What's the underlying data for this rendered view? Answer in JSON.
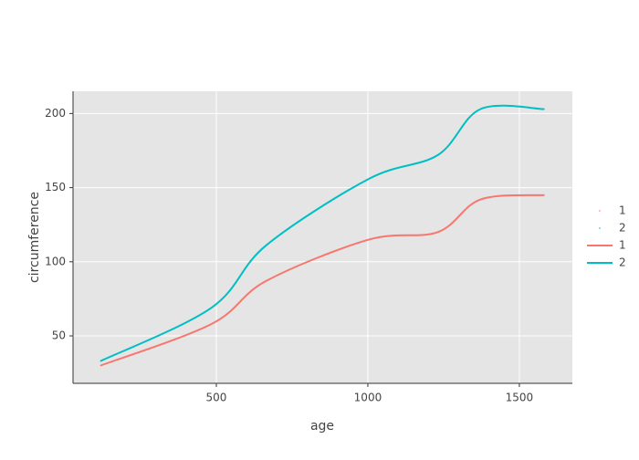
{
  "chart_data": {
    "type": "line",
    "xlabel": "age",
    "ylabel": "circumference",
    "x": [
      118,
      484,
      664,
      1004,
      1231,
      1372,
      1582
    ],
    "series": [
      {
        "name": "1",
        "color": "#F8766D",
        "mode": "markers",
        "values": [
          30,
          58,
          87,
          115,
          120,
          142,
          145
        ]
      },
      {
        "name": "2",
        "color": "#00BFC4",
        "mode": "markers",
        "values": [
          33,
          69,
          111,
          156,
          172,
          203,
          203
        ]
      },
      {
        "name": "1",
        "color": "#F8766D",
        "mode": "lines",
        "values": [
          30,
          58,
          87,
          115,
          120,
          142,
          145
        ]
      },
      {
        "name": "2",
        "color": "#00BFC4",
        "mode": "lines",
        "values": [
          33,
          69,
          111,
          156,
          172,
          203,
          203
        ]
      }
    ],
    "xlim": [
      27,
      1675
    ],
    "ylim": [
      18,
      215
    ],
    "xticks": [
      500,
      1000,
      1500
    ],
    "yticks": [
      50,
      100,
      150,
      200
    ],
    "grid": true,
    "legend": "right"
  }
}
